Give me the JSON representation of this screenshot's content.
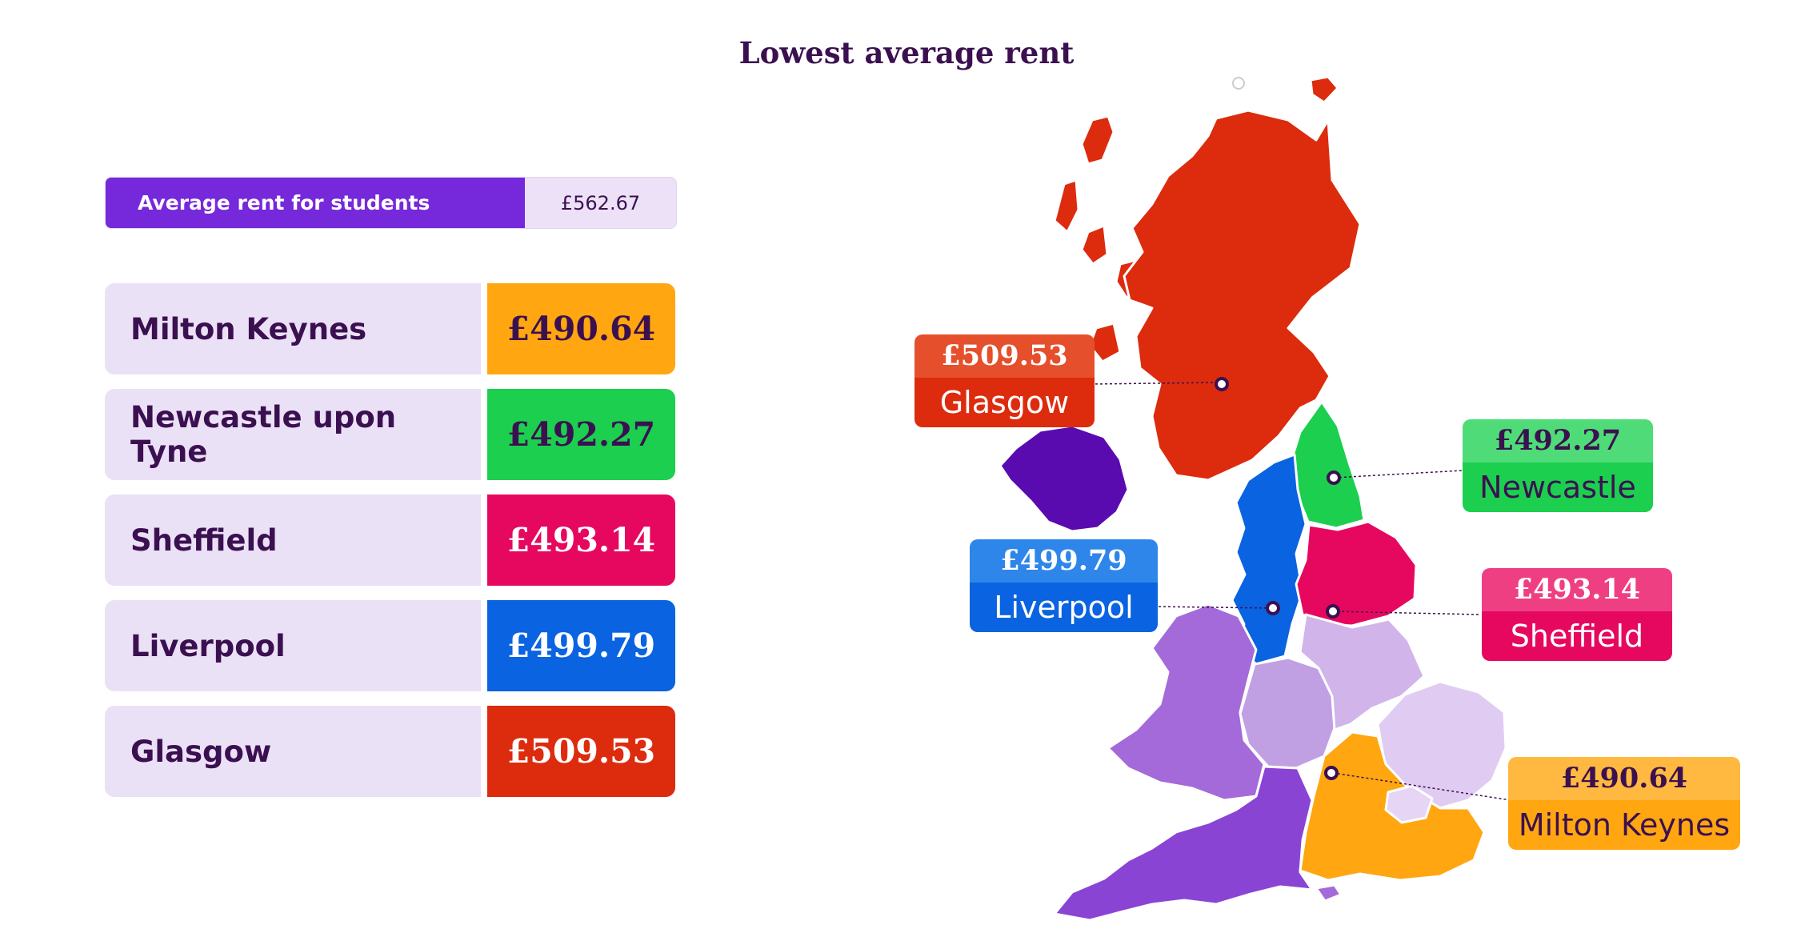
{
  "title": "Lowest average rent",
  "average": {
    "label": "Average rent for students",
    "value": "£562.67"
  },
  "rows": [
    {
      "name": "Milton Keynes",
      "value": "£490.64",
      "color": "#ffa610",
      "text": "#3b1050"
    },
    {
      "name": "Newcastle upon Tyne",
      "value": "£492.27",
      "color": "#1ccf4f",
      "text": "#3b1050"
    },
    {
      "name": "Sheffield",
      "value": "£493.14",
      "color": "#e6085f",
      "text": "#ffffff"
    },
    {
      "name": "Liverpool",
      "value": "£499.79",
      "color": "#0a63e0",
      "text": "#ffffff"
    },
    {
      "name": "Glasgow",
      "value": "£509.53",
      "color": "#dd2b0e",
      "text": "#ffffff"
    }
  ],
  "callouts": {
    "glasgow": {
      "price": "£509.53",
      "city": "Glasgow"
    },
    "newcastle": {
      "price": "£492.27",
      "city": "Newcastle"
    },
    "liverpool": {
      "price": "£499.79",
      "city": "Liverpool"
    },
    "sheffield": {
      "price": "£493.14",
      "city": "Sheffield"
    },
    "milton_keynes": {
      "price": "£490.64",
      "city": "Milton Keynes"
    }
  }
}
